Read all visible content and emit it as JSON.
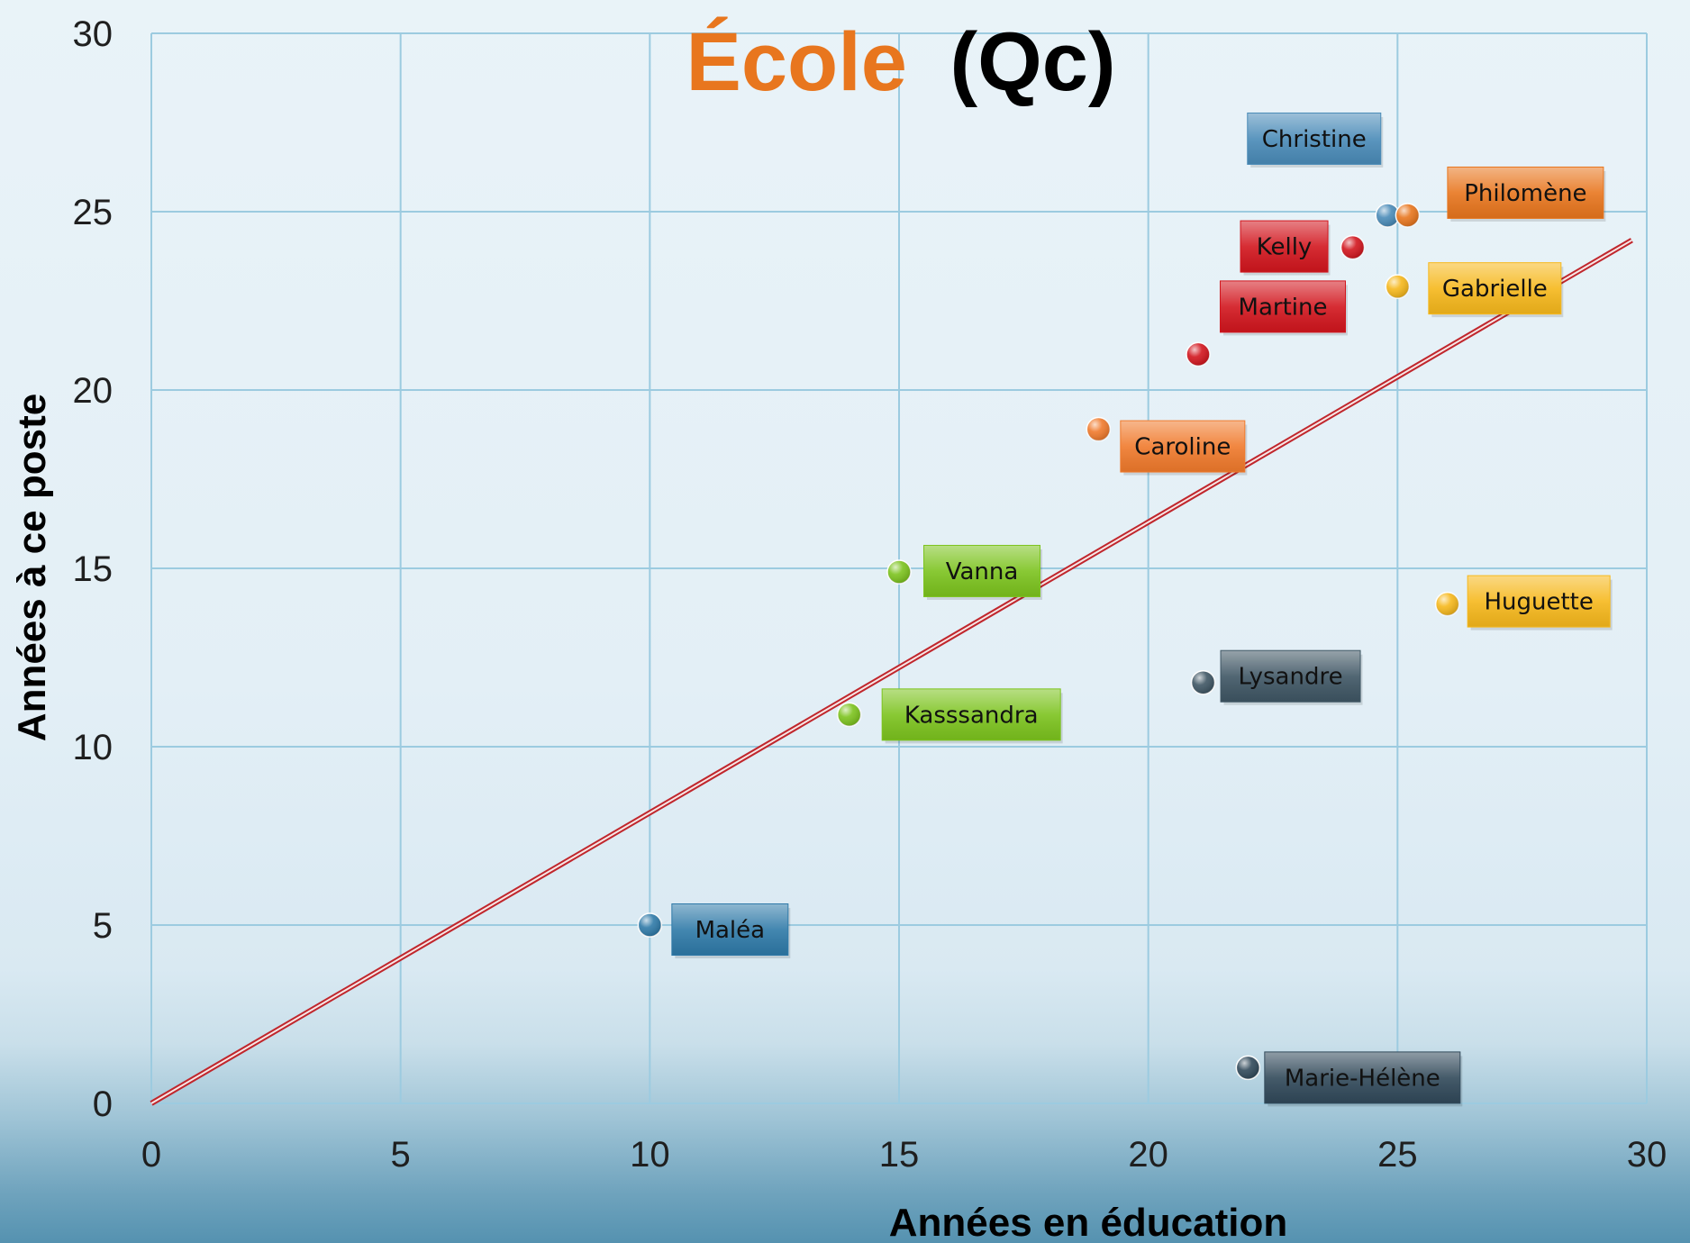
{
  "chart_data": {
    "type": "scatter",
    "title_part1": "École",
    "title_part2": "(Qc)",
    "xlabel": "Années en éducation",
    "ylabel": "Années à ce poste",
    "xlim": [
      0,
      30
    ],
    "ylim": [
      0,
      30
    ],
    "xticks": [
      0,
      5,
      10,
      15,
      20,
      25,
      30
    ],
    "yticks": [
      0,
      5,
      10,
      15,
      20,
      25,
      30
    ],
    "grid": true,
    "trendline": {
      "x": [
        0,
        29.7
      ],
      "y": [
        0,
        24.2
      ],
      "color": "#c0262c"
    },
    "title_colors": {
      "part1": "#e8761e",
      "part2": "#000000"
    },
    "points": [
      {
        "name": "Christine",
        "x": 24.8,
        "y": 24.9,
        "color": "#4a8bb8"
      },
      {
        "name": "Philomène",
        "x": 25.2,
        "y": 24.9,
        "color": "#e8761e"
      },
      {
        "name": "Kelly",
        "x": 24.1,
        "y": 24.0,
        "color": "#d2161e"
      },
      {
        "name": "Gabrielle",
        "x": 25.0,
        "y": 22.9,
        "color": "#f6b81c"
      },
      {
        "name": "Martine",
        "x": 21.0,
        "y": 21.0,
        "color": "#d2161e"
      },
      {
        "name": "Caroline",
        "x": 19.0,
        "y": 18.9,
        "color": "#f07a2c"
      },
      {
        "name": "Vanna",
        "x": 15.0,
        "y": 14.9,
        "color": "#7cc31e"
      },
      {
        "name": "Huguette",
        "x": 26.0,
        "y": 14.0,
        "color": "#f6b81c"
      },
      {
        "name": "Lysandre",
        "x": 21.1,
        "y": 11.8,
        "color": "#3f5664"
      },
      {
        "name": "Kasssandra",
        "x": 14.0,
        "y": 10.9,
        "color": "#7cc31e"
      },
      {
        "name": "Maléa",
        "x": 10.0,
        "y": 5.0,
        "color": "#2f7aa8"
      },
      {
        "name": "Marie-Hélène",
        "x": 22.0,
        "y": 1.0,
        "color": "#31495a"
      }
    ]
  }
}
